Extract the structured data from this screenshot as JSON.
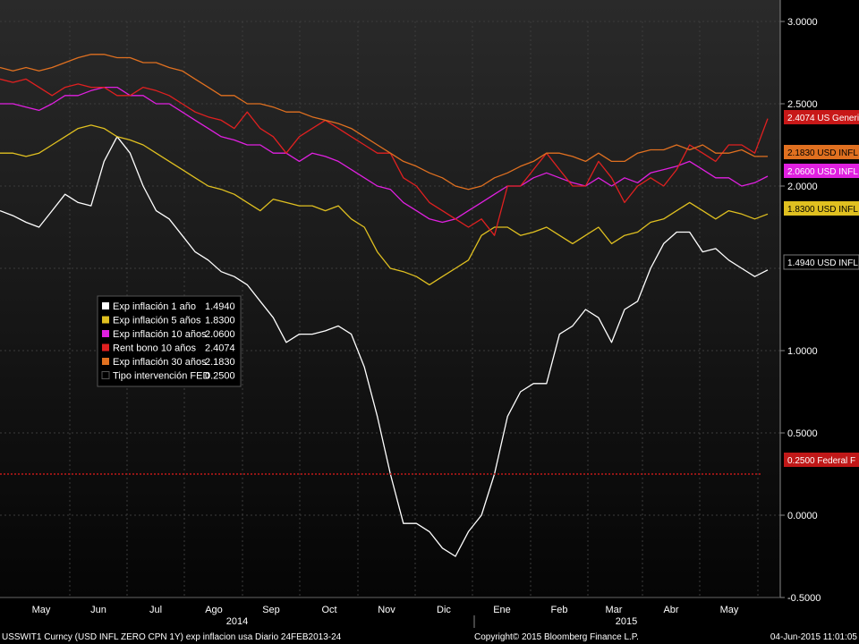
{
  "chart_data": {
    "type": "line",
    "ylim": [
      -0.5,
      3.0
    ],
    "y_ticks": [
      "3.0000",
      "2.5000",
      "2.0000",
      "1.0000",
      "0.5000",
      "0.0000",
      "-0.5000"
    ],
    "y_tick_values": [
      3.0,
      2.5,
      2.0,
      1.0,
      0.5,
      0.0,
      -0.5
    ],
    "months": [
      "May",
      "Jun",
      "Jul",
      "Ago",
      "Sep",
      "Oct",
      "Nov",
      "Dic",
      "Ene",
      "Feb",
      "Mar",
      "Abr",
      "May"
    ],
    "years": [
      "2014",
      "2015"
    ],
    "grid": true,
    "legend_position": "left-center",
    "series": [
      {
        "name": "Exp inflación 1 año",
        "last": "1.4940",
        "tag": "1.4940 USD INFL",
        "color": "#ffffff",
        "values": [
          1.85,
          1.82,
          1.78,
          1.75,
          1.85,
          1.95,
          1.9,
          1.88,
          2.15,
          2.3,
          2.2,
          2.0,
          1.85,
          1.8,
          1.7,
          1.6,
          1.55,
          1.48,
          1.45,
          1.4,
          1.3,
          1.2,
          1.05,
          1.1,
          1.1,
          1.12,
          1.15,
          1.1,
          0.9,
          0.6,
          0.25,
          -0.05,
          -0.05,
          -0.1,
          -0.2,
          -0.25,
          -0.1,
          0.0,
          0.25,
          0.6,
          0.75,
          0.8,
          0.8,
          1.1,
          1.15,
          1.25,
          1.2,
          1.05,
          1.25,
          1.3,
          1.5,
          1.65,
          1.72,
          1.72,
          1.6,
          1.62,
          1.55,
          1.5,
          1.45,
          1.49
        ]
      },
      {
        "name": "Exp inflación 5 años",
        "last": "1.8300",
        "tag": "1.8300 USD INFL",
        "color": "#e0c020",
        "values": [
          2.2,
          2.2,
          2.18,
          2.2,
          2.25,
          2.3,
          2.35,
          2.37,
          2.35,
          2.3,
          2.28,
          2.25,
          2.2,
          2.15,
          2.1,
          2.05,
          2.0,
          1.98,
          1.95,
          1.9,
          1.85,
          1.92,
          1.9,
          1.88,
          1.88,
          1.85,
          1.88,
          1.8,
          1.75,
          1.6,
          1.5,
          1.48,
          1.45,
          1.4,
          1.45,
          1.5,
          1.55,
          1.7,
          1.75,
          1.75,
          1.7,
          1.72,
          1.75,
          1.7,
          1.65,
          1.7,
          1.75,
          1.65,
          1.7,
          1.72,
          1.78,
          1.8,
          1.85,
          1.9,
          1.85,
          1.8,
          1.85,
          1.83,
          1.8,
          1.83
        ]
      },
      {
        "name": "Exp inflación 10 años",
        "last": "2.0600",
        "tag": "2.0600 USD INFL",
        "color": "#e020e0",
        "values": [
          2.5,
          2.5,
          2.48,
          2.46,
          2.5,
          2.55,
          2.55,
          2.58,
          2.6,
          2.6,
          2.55,
          2.55,
          2.5,
          2.5,
          2.45,
          2.4,
          2.35,
          2.3,
          2.28,
          2.25,
          2.25,
          2.2,
          2.2,
          2.15,
          2.2,
          2.18,
          2.15,
          2.1,
          2.05,
          2.0,
          1.98,
          1.9,
          1.85,
          1.8,
          1.78,
          1.8,
          1.85,
          1.9,
          1.95,
          2.0,
          2.0,
          2.05,
          2.08,
          2.05,
          2.02,
          2.0,
          2.05,
          2.0,
          2.05,
          2.02,
          2.08,
          2.1,
          2.12,
          2.15,
          2.1,
          2.05,
          2.05,
          2.0,
          2.02,
          2.06
        ]
      },
      {
        "name": "Rent bono 10 años",
        "last": "2.4074",
        "tag": "2.4074 US Generi",
        "color": "#e02020",
        "values": [
          2.65,
          2.63,
          2.65,
          2.6,
          2.55,
          2.6,
          2.62,
          2.6,
          2.6,
          2.55,
          2.55,
          2.6,
          2.58,
          2.55,
          2.5,
          2.45,
          2.42,
          2.4,
          2.35,
          2.45,
          2.35,
          2.3,
          2.2,
          2.3,
          2.35,
          2.4,
          2.35,
          2.3,
          2.25,
          2.2,
          2.2,
          2.05,
          2.0,
          1.9,
          1.85,
          1.8,
          1.75,
          1.8,
          1.7,
          2.0,
          2.0,
          2.1,
          2.2,
          2.1,
          2.0,
          2.0,
          2.15,
          2.05,
          1.9,
          2.0,
          2.05,
          2.0,
          2.1,
          2.25,
          2.2,
          2.15,
          2.25,
          2.25,
          2.2,
          2.41
        ]
      },
      {
        "name": "Exp inflación 30 años",
        "last": "2.1830",
        "tag": "2.1830 USD INFL",
        "color": "#e07020",
        "values": [
          2.72,
          2.7,
          2.72,
          2.7,
          2.72,
          2.75,
          2.78,
          2.8,
          2.8,
          2.78,
          2.78,
          2.75,
          2.75,
          2.72,
          2.7,
          2.65,
          2.6,
          2.55,
          2.55,
          2.5,
          2.5,
          2.48,
          2.45,
          2.45,
          2.42,
          2.4,
          2.38,
          2.35,
          2.3,
          2.25,
          2.2,
          2.15,
          2.12,
          2.08,
          2.05,
          2.0,
          1.98,
          2.0,
          2.05,
          2.08,
          2.12,
          2.15,
          2.2,
          2.2,
          2.18,
          2.15,
          2.2,
          2.15,
          2.15,
          2.2,
          2.22,
          2.22,
          2.25,
          2.22,
          2.25,
          2.2,
          2.2,
          2.22,
          2.18,
          2.18
        ]
      },
      {
        "name": "Tipo intervención FED",
        "last": "0.2500",
        "tag": "0.2500 Federal F",
        "color": "#c01818",
        "values": [
          0.25,
          0.25
        ]
      }
    ]
  },
  "footer": {
    "ticker": "USSWIT1 Curncy (USD INFL ZERO CPN    1Y) exp inflacion usa  Diario 24FEB2013-24",
    "copyright": "Copyright© 2015 Bloomberg Finance L.P.",
    "date": "04-Jun-2015 11:01:05"
  }
}
